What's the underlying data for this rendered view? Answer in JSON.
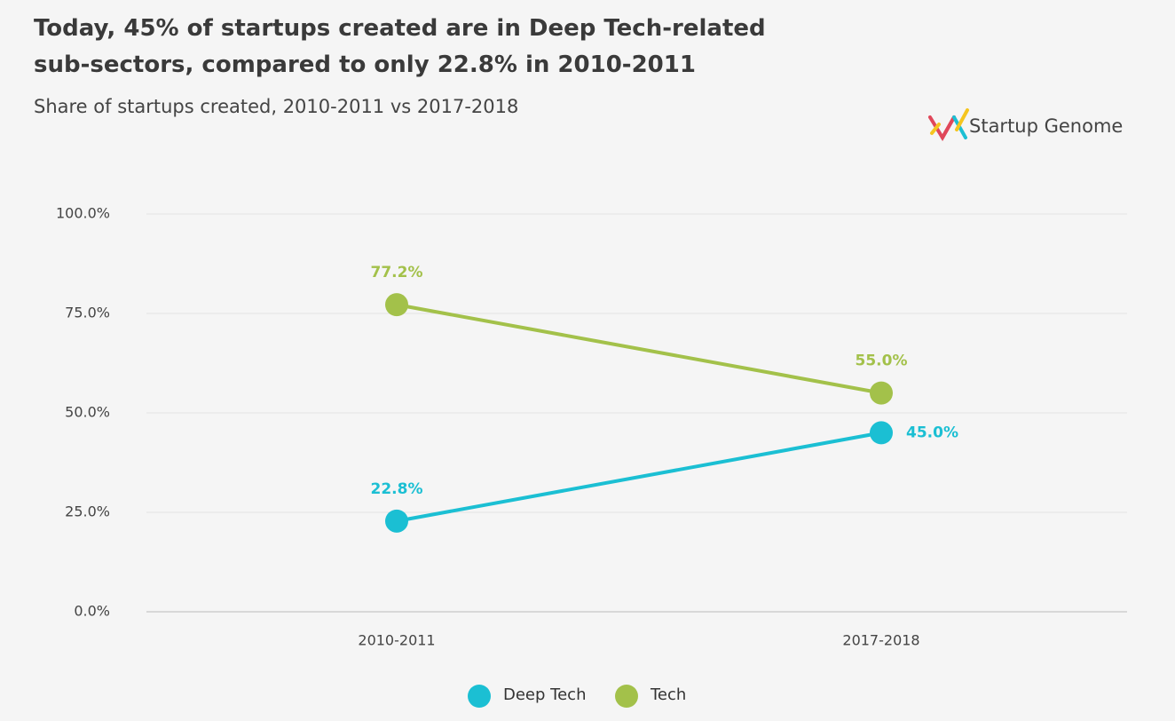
{
  "chart_data": {
    "type": "line",
    "title": "Today, 45% of startups created are in Deep Tech-related sub-sectors, compared to only 22.8% in 2010-2011",
    "subtitle": "Share of startups created, 2010-2011 vs 2017-2018",
    "logo_text": "Startup Genome",
    "categories": [
      "2010-2011",
      "2017-2018"
    ],
    "series": [
      {
        "name": "Deep Tech",
        "color": "#1bbfd3",
        "values": [
          22.8,
          45.0
        ],
        "value_labels": [
          "22.8%",
          "45.0%"
        ]
      },
      {
        "name": "Tech",
        "color": "#a3c14a",
        "values": [
          77.2,
          55.0
        ],
        "value_labels": [
          "77.2%",
          "55.0%"
        ]
      }
    ],
    "ylim": [
      0,
      100
    ],
    "yticks": [
      {
        "value": 0,
        "label": "0.0%"
      },
      {
        "value": 25,
        "label": "25.0%"
      },
      {
        "value": 50,
        "label": "50.0%"
      },
      {
        "value": 75,
        "label": "75.0%"
      },
      {
        "value": 100,
        "label": "100.0%"
      }
    ],
    "grid": true
  }
}
